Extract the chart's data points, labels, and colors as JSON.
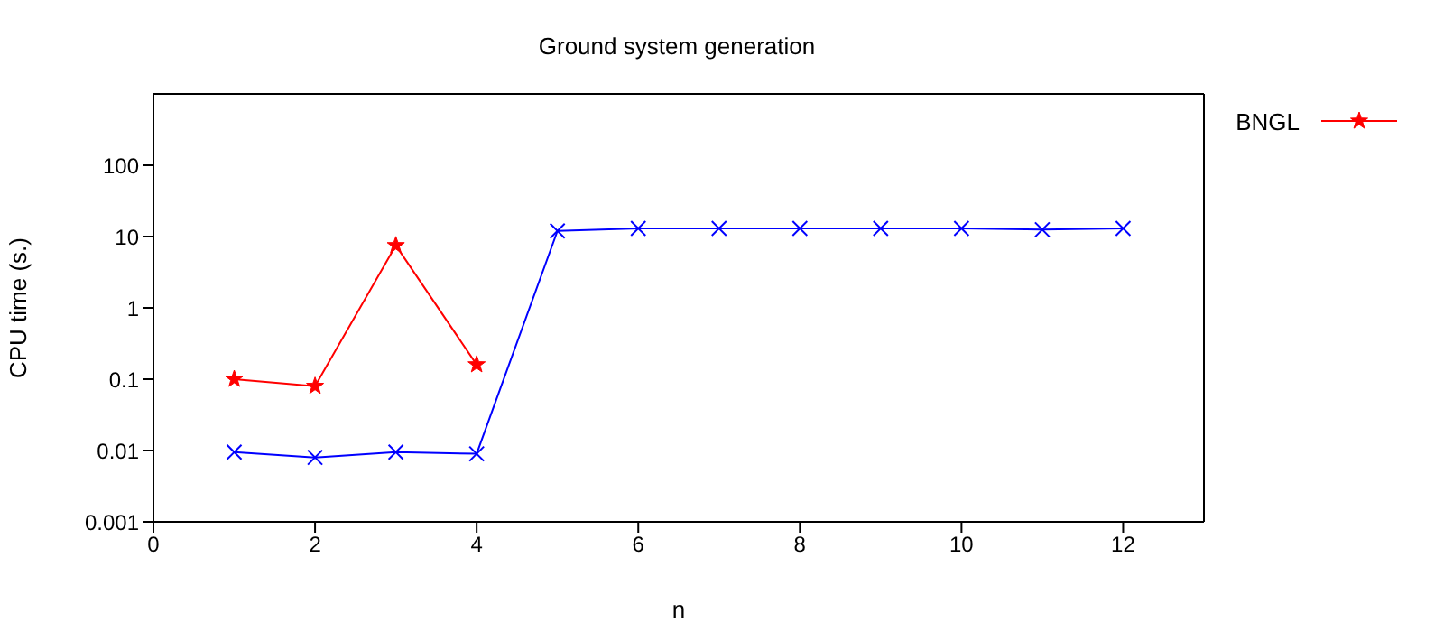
{
  "chart_data": {
    "type": "line",
    "title": "Ground system generation",
    "xlabel": "n",
    "ylabel": "CPU time (s.)",
    "log": "y",
    "xlim": [
      0,
      13
    ],
    "xticks": [
      0,
      2,
      4,
      6,
      8,
      10,
      12
    ],
    "ylim": [
      0.001,
      1000
    ],
    "yticks": [
      0.001,
      0.01,
      0.1,
      1,
      10,
      100
    ],
    "legend": "top right",
    "grid": false,
    "x": [
      1,
      2,
      3,
      4,
      5,
      6,
      7,
      8,
      9,
      10,
      11,
      12
    ],
    "series": [
      {
        "color": "#0000ff",
        "marker": "cross",
        "values": [
          0.0095,
          0.008,
          0.0095,
          0.009,
          12,
          13,
          13,
          13,
          13,
          13,
          12.5,
          13
        ]
      },
      {
        "name": "BNGL",
        "color": "#ff0000",
        "marker": "star",
        "values": [
          0.1,
          0.08,
          7.5,
          0.16,
          null,
          null,
          null,
          null,
          null,
          null,
          null,
          null
        ]
      }
    ]
  }
}
